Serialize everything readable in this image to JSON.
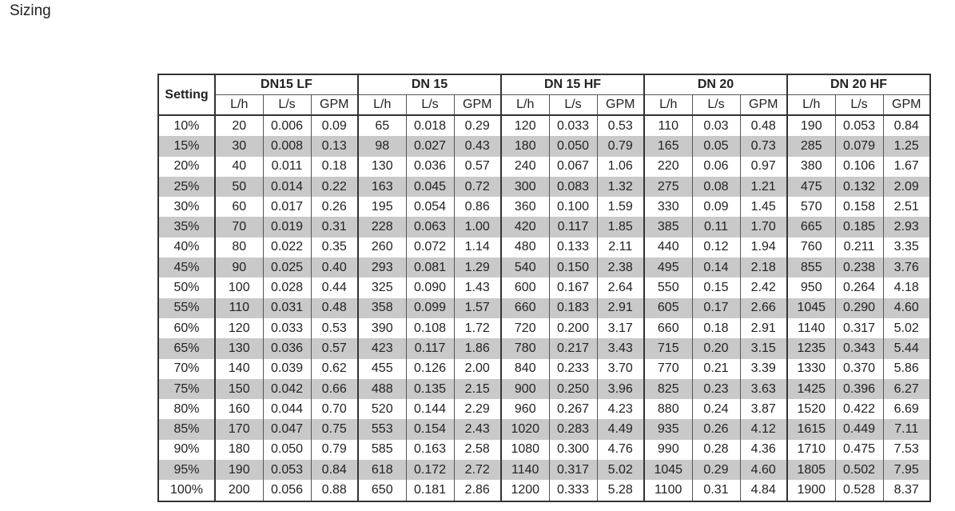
{
  "title": "Sizing",
  "table": {
    "corner": "Setting",
    "groups": [
      {
        "name": "DN15 LF",
        "columns": [
          "L/h",
          "L/s",
          "GPM"
        ]
      },
      {
        "name": "DN 15",
        "columns": [
          "L/h",
          "L/s",
          "GPM"
        ]
      },
      {
        "name": "DN 15 HF",
        "columns": [
          "L/h",
          "L/s",
          "GPM"
        ]
      },
      {
        "name": "DN 20",
        "columns": [
          "L/h",
          "L/s",
          "GPM"
        ]
      },
      {
        "name": "DN 20 HF",
        "columns": [
          "L/h",
          "L/s",
          "GPM"
        ]
      }
    ],
    "rows": [
      [
        "10%",
        "20",
        "0.006",
        "0.09",
        "65",
        "0.018",
        "0.29",
        "120",
        "0.033",
        "0.53",
        "110",
        "0.03",
        "0.48",
        "190",
        "0.053",
        "0.84"
      ],
      [
        "15%",
        "30",
        "0.008",
        "0.13",
        "98",
        "0.027",
        "0.43",
        "180",
        "0.050",
        "0.79",
        "165",
        "0.05",
        "0.73",
        "285",
        "0.079",
        "1.25"
      ],
      [
        "20%",
        "40",
        "0.011",
        "0.18",
        "130",
        "0.036",
        "0.57",
        "240",
        "0.067",
        "1.06",
        "220",
        "0.06",
        "0.97",
        "380",
        "0.106",
        "1.67"
      ],
      [
        "25%",
        "50",
        "0.014",
        "0.22",
        "163",
        "0.045",
        "0.72",
        "300",
        "0.083",
        "1.32",
        "275",
        "0.08",
        "1.21",
        "475",
        "0.132",
        "2.09"
      ],
      [
        "30%",
        "60",
        "0.017",
        "0.26",
        "195",
        "0.054",
        "0.86",
        "360",
        "0.100",
        "1.59",
        "330",
        "0.09",
        "1.45",
        "570",
        "0.158",
        "2.51"
      ],
      [
        "35%",
        "70",
        "0.019",
        "0.31",
        "228",
        "0.063",
        "1.00",
        "420",
        "0.117",
        "1.85",
        "385",
        "0.11",
        "1.70",
        "665",
        "0.185",
        "2.93"
      ],
      [
        "40%",
        "80",
        "0.022",
        "0.35",
        "260",
        "0.072",
        "1.14",
        "480",
        "0.133",
        "2.11",
        "440",
        "0.12",
        "1.94",
        "760",
        "0.211",
        "3.35"
      ],
      [
        "45%",
        "90",
        "0.025",
        "0.40",
        "293",
        "0.081",
        "1.29",
        "540",
        "0.150",
        "2.38",
        "495",
        "0.14",
        "2.18",
        "855",
        "0.238",
        "3.76"
      ],
      [
        "50%",
        "100",
        "0.028",
        "0.44",
        "325",
        "0.090",
        "1.43",
        "600",
        "0.167",
        "2.64",
        "550",
        "0.15",
        "2.42",
        "950",
        "0.264",
        "4.18"
      ],
      [
        "55%",
        "110",
        "0.031",
        "0.48",
        "358",
        "0.099",
        "1.57",
        "660",
        "0.183",
        "2.91",
        "605",
        "0.17",
        "2.66",
        "1045",
        "0.290",
        "4.60"
      ],
      [
        "60%",
        "120",
        "0.033",
        "0.53",
        "390",
        "0.108",
        "1.72",
        "720",
        "0.200",
        "3.17",
        "660",
        "0.18",
        "2.91",
        "1140",
        "0.317",
        "5.02"
      ],
      [
        "65%",
        "130",
        "0.036",
        "0.57",
        "423",
        "0.117",
        "1.86",
        "780",
        "0.217",
        "3.43",
        "715",
        "0.20",
        "3.15",
        "1235",
        "0.343",
        "5.44"
      ],
      [
        "70%",
        "140",
        "0.039",
        "0.62",
        "455",
        "0.126",
        "2.00",
        "840",
        "0.233",
        "3.70",
        "770",
        "0.21",
        "3.39",
        "1330",
        "0.370",
        "5.86"
      ],
      [
        "75%",
        "150",
        "0.042",
        "0.66",
        "488",
        "0.135",
        "2.15",
        "900",
        "0.250",
        "3.96",
        "825",
        "0.23",
        "3.63",
        "1425",
        "0.396",
        "6.27"
      ],
      [
        "80%",
        "160",
        "0.044",
        "0.70",
        "520",
        "0.144",
        "2.29",
        "960",
        "0.267",
        "4.23",
        "880",
        "0.24",
        "3.87",
        "1520",
        "0.422",
        "6.69"
      ],
      [
        "85%",
        "170",
        "0.047",
        "0.75",
        "553",
        "0.154",
        "2.43",
        "1020",
        "0.283",
        "4.49",
        "935",
        "0.26",
        "4.12",
        "1615",
        "0.449",
        "7.11"
      ],
      [
        "90%",
        "180",
        "0.050",
        "0.79",
        "585",
        "0.163",
        "2.58",
        "1080",
        "0.300",
        "4.76",
        "990",
        "0.28",
        "4.36",
        "1710",
        "0.475",
        "7.53"
      ],
      [
        "95%",
        "190",
        "0.053",
        "0.84",
        "618",
        "0.172",
        "2.72",
        "1140",
        "0.317",
        "5.02",
        "1045",
        "0.29",
        "4.60",
        "1805",
        "0.502",
        "7.95"
      ],
      [
        "100%",
        "200",
        "0.056",
        "0.88",
        "650",
        "0.181",
        "2.86",
        "1200",
        "0.333",
        "5.28",
        "1100",
        "0.31",
        "4.84",
        "1900",
        "0.528",
        "8.37"
      ]
    ]
  }
}
